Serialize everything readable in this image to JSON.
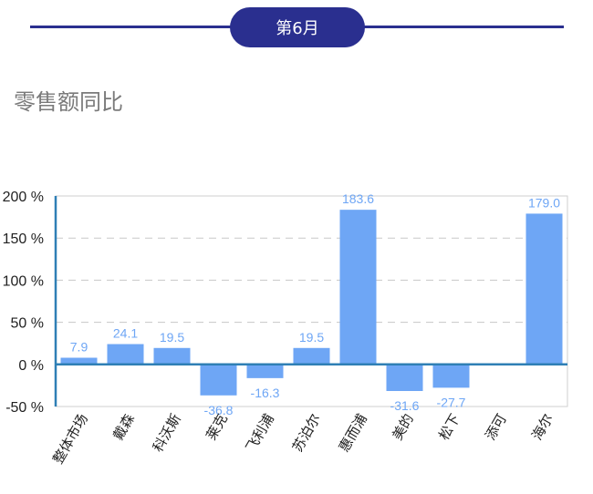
{
  "header": {
    "month": "第6月"
  },
  "section": {
    "title": "零售额同比"
  },
  "colors": {
    "bar": "#6ea6f5",
    "accent": "#2a2f8f",
    "axis": "#2f7fb5",
    "label": "#6ea6f5"
  },
  "chart_data": {
    "type": "bar",
    "title": "",
    "xlabel": "",
    "ylabel": "",
    "categories": [
      "整体市场",
      "戴森",
      "科沃斯",
      "莱克",
      "飞利浦",
      "苏泊尔",
      "惠而浦",
      "美的",
      "松下",
      "添可",
      "海尔"
    ],
    "values": [
      7.9,
      24.1,
      19.5,
      -36.8,
      -16.3,
      19.5,
      183.6,
      -31.6,
      -27.7,
      null,
      179.0
    ],
    "data_labels": [
      "7.9",
      "24.1",
      "19.5",
      "-36.8",
      "-16.3",
      "19.5",
      "183.6",
      "-31.6",
      "-27.7",
      "",
      "179.0"
    ],
    "ylim": [
      -50,
      200
    ],
    "yticks": [
      -50,
      0,
      50,
      100,
      150,
      200
    ],
    "ytick_labels": [
      "-50 %",
      "0 %",
      "50 %",
      "100 %",
      "150 %",
      "200 %"
    ],
    "grid": true
  }
}
